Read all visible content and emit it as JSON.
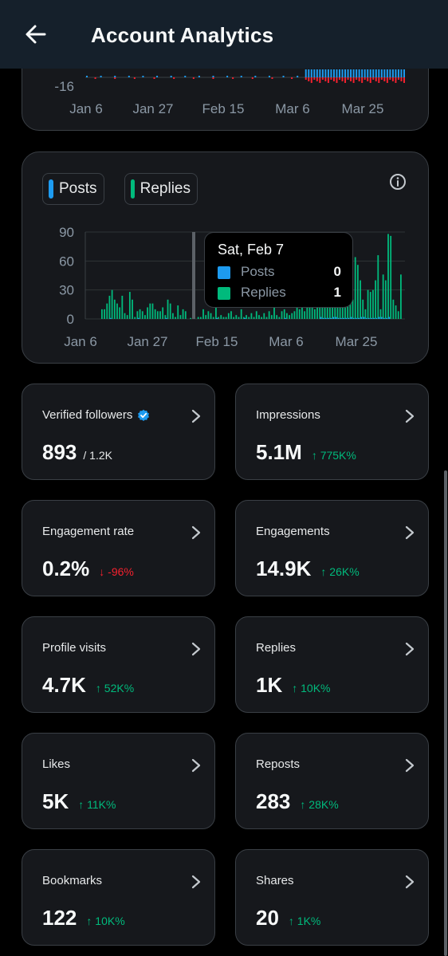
{
  "header": {
    "title": "Account Analytics"
  },
  "top_chart": {
    "y_tick": "-16",
    "x_labels": [
      "Jan 6",
      "Jan 27",
      "Feb 15",
      "Mar 6",
      "Mar 25"
    ]
  },
  "legend": {
    "posts_label": "Posts",
    "replies_label": "Replies"
  },
  "colors": {
    "posts": "#1d9bf0",
    "replies": "#00ba7c",
    "negative": "#f4212e",
    "up": "#00ba7c",
    "down": "#f4212e"
  },
  "chart_data": {
    "type": "bar",
    "y_ticks": [
      "90",
      "60",
      "30",
      "0"
    ],
    "ylim": [
      0,
      90
    ],
    "x_labels": [
      "Jan 6",
      "Jan 27",
      "Feb 15",
      "Mar 6",
      "Mar 25"
    ],
    "series": [
      {
        "name": "Posts",
        "values": [
          0,
          0,
          0,
          1,
          0,
          0,
          0,
          0,
          0,
          0,
          0,
          0,
          0,
          0,
          1,
          0,
          0,
          0,
          0,
          0,
          0,
          0,
          0,
          0,
          0,
          1,
          0,
          0,
          0,
          0,
          0,
          0,
          0,
          0,
          0,
          0,
          0,
          0,
          0,
          0,
          0,
          0,
          0,
          0,
          0,
          1,
          0,
          0,
          0,
          0,
          0,
          0,
          0,
          0,
          0,
          0,
          1,
          0,
          0,
          0,
          0,
          0,
          0,
          0,
          0,
          0,
          0,
          0,
          0,
          0,
          0,
          0,
          1,
          0,
          0,
          0,
          0,
          0,
          0,
          0,
          0,
          0,
          0,
          0,
          0,
          0,
          2,
          1,
          1,
          1,
          1,
          2,
          2,
          1,
          1,
          1,
          1,
          1,
          2,
          1,
          1,
          1,
          2,
          2,
          1,
          1,
          1,
          1,
          1,
          2,
          2,
          1,
          1,
          2
        ]
      },
      {
        "name": "Replies",
        "values": [
          10,
          10,
          16,
          24,
          30,
          20,
          16,
          12,
          24,
          6,
          4,
          28,
          20,
          2,
          8,
          10,
          8,
          4,
          12,
          16,
          16,
          10,
          8,
          8,
          12,
          4,
          20,
          16,
          6,
          2,
          14,
          4,
          10,
          8,
          0,
          1,
          0,
          0,
          2,
          2,
          10,
          4,
          8,
          6,
          2,
          12,
          2,
          4,
          2,
          2,
          6,
          8,
          2,
          4,
          2,
          10,
          2,
          4,
          2,
          6,
          2,
          8,
          4,
          2,
          6,
          2,
          8,
          4,
          12,
          4,
          2,
          8,
          10,
          6,
          4,
          6,
          8,
          22,
          10,
          14,
          8,
          20,
          16,
          26,
          10,
          14,
          30,
          12,
          28,
          18,
          36,
          24,
          16,
          30,
          28,
          40,
          20,
          50,
          30,
          20,
          64,
          56,
          40,
          20,
          10,
          30,
          28,
          30,
          40,
          66,
          10,
          46,
          40,
          88,
          86,
          20,
          14,
          8,
          46
        ]
      }
    ],
    "tooltip": {
      "date": "Sat, Feb 7",
      "posts": "0",
      "replies": "1"
    }
  },
  "metrics": [
    {
      "label": "Verified followers",
      "value": "893",
      "sub": "/ 1.2K",
      "delta": "",
      "direction": "",
      "icon": "verified-icon"
    },
    {
      "label": "Impressions",
      "value": "5.1M",
      "sub": "",
      "delta": "↑ 775K%",
      "direction": "up"
    },
    {
      "label": "Engagement rate",
      "value": "0.2%",
      "sub": "",
      "delta": "↓ -96%",
      "direction": "down"
    },
    {
      "label": "Engagements",
      "value": "14.9K",
      "sub": "",
      "delta": "↑ 26K%",
      "direction": "up"
    },
    {
      "label": "Profile visits",
      "value": "4.7K",
      "sub": "",
      "delta": "↑ 52K%",
      "direction": "up"
    },
    {
      "label": "Replies",
      "value": "1K",
      "sub": "",
      "delta": "↑ 10K%",
      "direction": "up"
    },
    {
      "label": "Likes",
      "value": "5K",
      "sub": "",
      "delta": "↑ 11K%",
      "direction": "up"
    },
    {
      "label": "Reposts",
      "value": "283",
      "sub": "",
      "delta": "↑ 28K%",
      "direction": "up"
    },
    {
      "label": "Bookmarks",
      "value": "122",
      "sub": "",
      "delta": "↑ 10K%",
      "direction": "up"
    },
    {
      "label": "Shares",
      "value": "20",
      "sub": "",
      "delta": "↑ 1K%",
      "direction": "up"
    }
  ]
}
